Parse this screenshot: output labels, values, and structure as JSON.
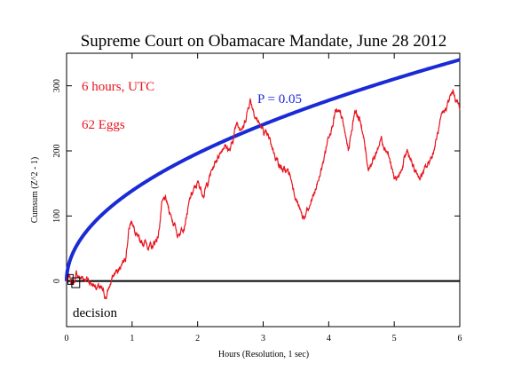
{
  "chart_data": {
    "type": "line",
    "title": "Supreme Court on Obamacare Mandate, June 28 2012",
    "xlabel": "Hours (Resolution, 1 sec)",
    "ylabel": "Cumsum (Z^2 - 1)",
    "xlim": [
      0,
      6
    ],
    "ylim": [
      -70,
      350
    ],
    "x_ticks": [
      0,
      1,
      2,
      3,
      4,
      5,
      6
    ],
    "y_ticks": [
      0,
      100,
      200,
      300
    ],
    "grid": false,
    "annotations": {
      "duration": "6 hours, UTC",
      "eggs": "62 Eggs",
      "p_label": "P = 0.05",
      "event": "decision"
    },
    "colors": {
      "cumsum": "#e8141e",
      "envelope": "#1a2ad6",
      "baseline": "#000000"
    },
    "series": [
      {
        "x": [
          0,
          0.05,
          0.1,
          0.15,
          0.2,
          0.3,
          0.4,
          0.5,
          0.6,
          0.7,
          0.8,
          0.9,
          0.95,
          1.0,
          1.05,
          1.1,
          1.2,
          1.3,
          1.4,
          1.45,
          1.5,
          1.6,
          1.7,
          1.8,
          1.9,
          2.0,
          2.1,
          2.2,
          2.3,
          2.4,
          2.5,
          2.6,
          2.7,
          2.8,
          2.9,
          3.0,
          3.1,
          3.2,
          3.3,
          3.4,
          3.5,
          3.6,
          3.7,
          3.8,
          3.9,
          4.0,
          4.1,
          4.2,
          4.3,
          4.4,
          4.5,
          4.6,
          4.7,
          4.8,
          4.9,
          5.0,
          5.1,
          5.2,
          5.3,
          5.4,
          5.5,
          5.6,
          5.7,
          5.8,
          5.9,
          6.0
        ],
        "values": [
          0,
          5,
          -5,
          10,
          5,
          5,
          -5,
          -10,
          -25,
          5,
          20,
          40,
          80,
          95,
          70,
          60,
          60,
          50,
          70,
          115,
          125,
          100,
          70,
          90,
          130,
          150,
          135,
          165,
          190,
          210,
          200,
          245,
          235,
          280,
          250,
          230,
          215,
          190,
          170,
          165,
          130,
          95,
          110,
          140,
          175,
          225,
          260,
          250,
          200,
          265,
          240,
          175,
          190,
          220,
          200,
          155,
          165,
          200,
          170,
          160,
          175,
          200,
          240,
          270,
          290,
          265
        ]
      },
      {
        "x": [
          0,
          0.1,
          0.25,
          0.5,
          1,
          1.5,
          2,
          2.5,
          3,
          3.5,
          4,
          4.5,
          5,
          5.5,
          6
        ],
        "values": [
          0,
          43,
          69,
          98,
          139,
          170,
          196,
          219,
          240,
          259,
          277,
          294,
          310,
          325,
          340
        ]
      }
    ]
  }
}
